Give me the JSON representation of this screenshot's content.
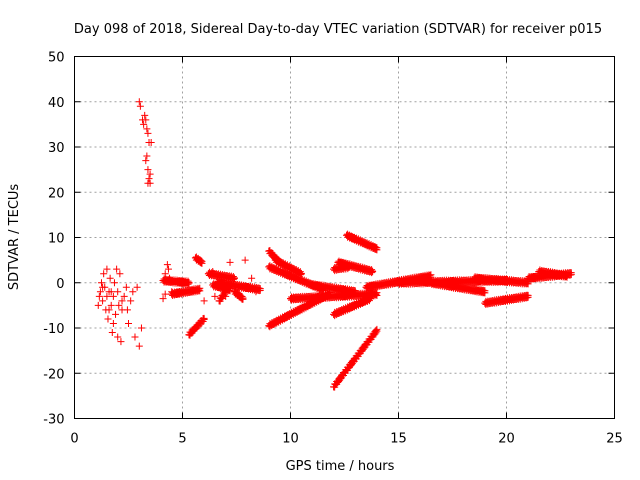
{
  "chart_data": {
    "type": "scatter",
    "title": "Day 098 of 2018, Sidereal Day-to-day VTEC variation (SDTVAR) for receiver p015",
    "xlabel": "GPS time / hours",
    "ylabel": "SDTVAR / TECUs",
    "xlim": [
      0,
      25
    ],
    "ylim": [
      -30,
      50
    ],
    "x_ticks": [
      "0",
      "5",
      "10",
      "15",
      "20",
      "25"
    ],
    "y_ticks": [
      "-30",
      "-20",
      "-10",
      "0",
      "10",
      "20",
      "30",
      "40",
      "50"
    ],
    "x_tick_values": [
      0,
      5,
      10,
      15,
      20,
      25
    ],
    "y_tick_values": [
      -30,
      -20,
      -10,
      0,
      10,
      20,
      30,
      40,
      50
    ],
    "grid": true,
    "marker": "+",
    "series_color": "#ff0000",
    "scattered_points": [
      [
        1.1,
        -5
      ],
      [
        1.2,
        -2
      ],
      [
        1.25,
        0
      ],
      [
        1.3,
        -4
      ],
      [
        1.35,
        2
      ],
      [
        1.4,
        -1
      ],
      [
        1.45,
        -6
      ],
      [
        1.5,
        3
      ],
      [
        1.5,
        -3
      ],
      [
        1.55,
        -8
      ],
      [
        1.6,
        -2
      ],
      [
        1.65,
        1
      ],
      [
        1.7,
        -5
      ],
      [
        1.75,
        -11
      ],
      [
        1.8,
        -3
      ],
      [
        1.85,
        0
      ],
      [
        1.9,
        -7
      ],
      [
        1.95,
        3
      ],
      [
        2.0,
        -12
      ],
      [
        2.0,
        -2
      ],
      [
        2.05,
        -5
      ],
      [
        2.1,
        2
      ],
      [
        2.15,
        -13
      ],
      [
        2.2,
        -6
      ],
      [
        2.3,
        -3
      ],
      [
        2.4,
        -1
      ],
      [
        2.5,
        -9
      ],
      [
        2.6,
        -4
      ],
      [
        2.7,
        -2
      ],
      [
        2.8,
        -12
      ],
      [
        2.9,
        -1
      ],
      [
        3.0,
        -14
      ],
      [
        3.1,
        -10
      ],
      [
        1.3,
        -1
      ],
      [
        1.6,
        -6
      ],
      [
        1.8,
        -9
      ],
      [
        2.2,
        -4
      ],
      [
        2.45,
        -6
      ],
      [
        1.15,
        -3
      ],
      [
        1.7,
        -2
      ],
      [
        3.0,
        40
      ],
      [
        3.05,
        39
      ],
      [
        3.15,
        36
      ],
      [
        3.2,
        35
      ],
      [
        3.25,
        37
      ],
      [
        3.3,
        36
      ],
      [
        3.35,
        34
      ],
      [
        3.4,
        33
      ],
      [
        3.45,
        31
      ],
      [
        3.35,
        28
      ],
      [
        3.3,
        27
      ],
      [
        3.4,
        25
      ],
      [
        3.45,
        23
      ],
      [
        3.5,
        22
      ],
      [
        3.4,
        22
      ],
      [
        3.5,
        24
      ],
      [
        3.55,
        31
      ],
      [
        4.2,
        2
      ],
      [
        4.3,
        4
      ],
      [
        4.4,
        1
      ],
      [
        4.5,
        -2
      ],
      [
        4.35,
        3
      ],
      [
        7.2,
        4.5
      ],
      [
        7.9,
        5
      ],
      [
        6.4,
        2.5
      ],
      [
        6.8,
        0.5
      ],
      [
        7.6,
        -1
      ],
      [
        8.2,
        1
      ],
      [
        8.4,
        -2
      ],
      [
        6.5,
        -3
      ],
      [
        7.0,
        -3
      ],
      [
        6.0,
        -4
      ],
      [
        4.1,
        -3.5
      ],
      [
        4.2,
        -2.5
      ]
    ],
    "segments": [
      {
        "x": [
          4.1,
          5.3
        ],
        "y": [
          0.5,
          0.0
        ]
      },
      {
        "x": [
          4.5,
          5.8
        ],
        "y": [
          -2.5,
          -1.5
        ]
      },
      {
        "x": [
          5.6,
          5.9
        ],
        "y": [
          5.5,
          4.5
        ]
      },
      {
        "x": [
          5.3,
          6.0
        ],
        "y": [
          -11.5,
          -8.0
        ]
      },
      {
        "x": [
          6.2,
          7.4
        ],
        "y": [
          2.0,
          1.0
        ]
      },
      {
        "x": [
          6.4,
          7.2
        ],
        "y": [
          -0.5,
          -1.5
        ]
      },
      {
        "x": [
          6.6,
          8.6
        ],
        "y": [
          0.0,
          -1.5
        ]
      },
      {
        "x": [
          6.7,
          7.0
        ],
        "y": [
          -4.0,
          -2.0
        ]
      },
      {
        "x": [
          7.4,
          7.8
        ],
        "y": [
          -2.0,
          -3.5
        ]
      },
      {
        "x": [
          9.0,
          9.5
        ],
        "y": [
          7.0,
          4.5
        ]
      },
      {
        "x": [
          9.3,
          10.5
        ],
        "y": [
          5.0,
          2.0
        ]
      },
      {
        "x": [
          9.0,
          11.5
        ],
        "y": [
          3.5,
          -1.5
        ]
      },
      {
        "x": [
          9.0,
          11.8
        ],
        "y": [
          -9.5,
          -2.5
        ]
      },
      {
        "x": [
          10.0,
          14.0
        ],
        "y": [
          -3.5,
          -2.5
        ]
      },
      {
        "x": [
          11.0,
          13.0
        ],
        "y": [
          -0.5,
          -2.0
        ]
      },
      {
        "x": [
          12.0,
          12.7
        ],
        "y": [
          3.0,
          3.5
        ]
      },
      {
        "x": [
          12.2,
          13.8
        ],
        "y": [
          4.5,
          2.5
        ]
      },
      {
        "x": [
          12.6,
          14.0
        ],
        "y": [
          10.5,
          7.5
        ]
      },
      {
        "x": [
          12.0,
          13.7
        ],
        "y": [
          -7.0,
          -3.5
        ]
      },
      {
        "x": [
          12.0,
          14.0
        ],
        "y": [
          -23.0,
          -10.5
        ]
      },
      {
        "x": [
          13.5,
          16.5
        ],
        "y": [
          -1.0,
          1.5
        ]
      },
      {
        "x": [
          15.0,
          20.0
        ],
        "y": [
          0.0,
          0.5
        ]
      },
      {
        "x": [
          16.5,
          19.0
        ],
        "y": [
          0.0,
          -2.0
        ]
      },
      {
        "x": [
          18.5,
          21.0
        ],
        "y": [
          1.0,
          0.0
        ]
      },
      {
        "x": [
          19.0,
          21.0
        ],
        "y": [
          -4.5,
          -3.0
        ]
      },
      {
        "x": [
          21.0,
          23.0
        ],
        "y": [
          1.0,
          2.0
        ]
      },
      {
        "x": [
          21.5,
          22.8
        ],
        "y": [
          2.5,
          1.5
        ]
      }
    ]
  }
}
